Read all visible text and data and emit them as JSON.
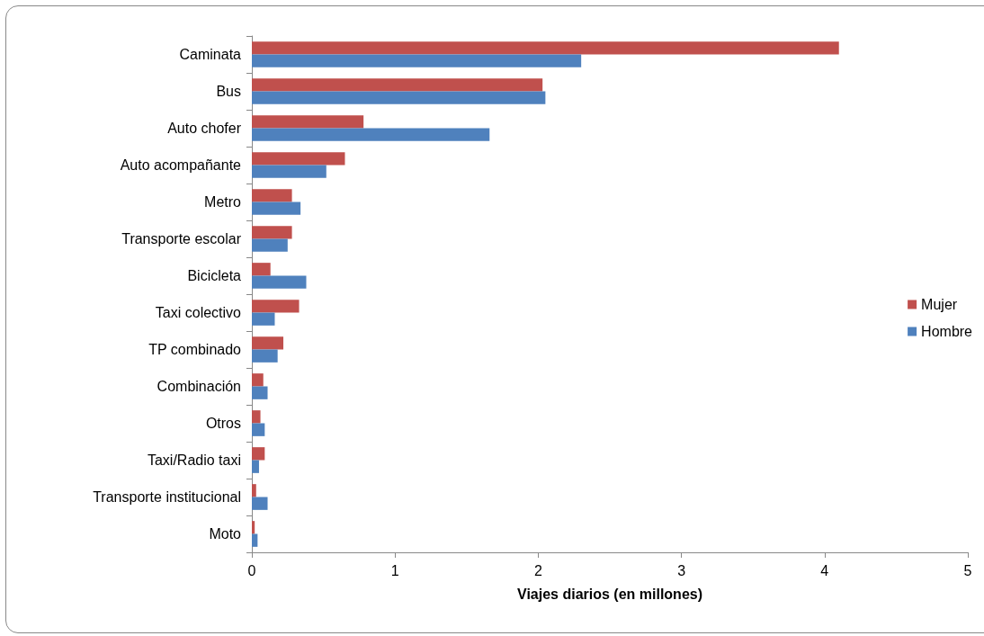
{
  "chart_data": {
    "type": "bar",
    "orientation": "horizontal",
    "xlabel": "Viajes diarios (en millones)",
    "categories": [
      "Caminata",
      "Bus",
      "Auto chofer",
      "Auto acompañante",
      "Metro",
      "Transporte escolar",
      "Bicicleta",
      "Taxi colectivo",
      "TP combinado",
      "Combinación",
      "Otros",
      "Taxi/Radio taxi",
      "Transporte institucional",
      "Moto"
    ],
    "series": [
      {
        "name": "Mujer",
        "color": "#c0504d",
        "values": [
          4.1,
          2.03,
          0.78,
          0.65,
          0.28,
          0.28,
          0.13,
          0.33,
          0.22,
          0.08,
          0.06,
          0.09,
          0.03,
          0.02
        ]
      },
      {
        "name": "Hombre",
        "color": "#4f81bd",
        "values": [
          2.3,
          2.05,
          1.66,
          0.52,
          0.34,
          0.25,
          0.38,
          0.16,
          0.18,
          0.11,
          0.09,
          0.05,
          0.11,
          0.04
        ]
      }
    ],
    "xlim": [
      0,
      5
    ],
    "xticks": [
      0,
      1,
      2,
      3,
      4,
      5
    ],
    "grid": false,
    "legend": "right"
  }
}
